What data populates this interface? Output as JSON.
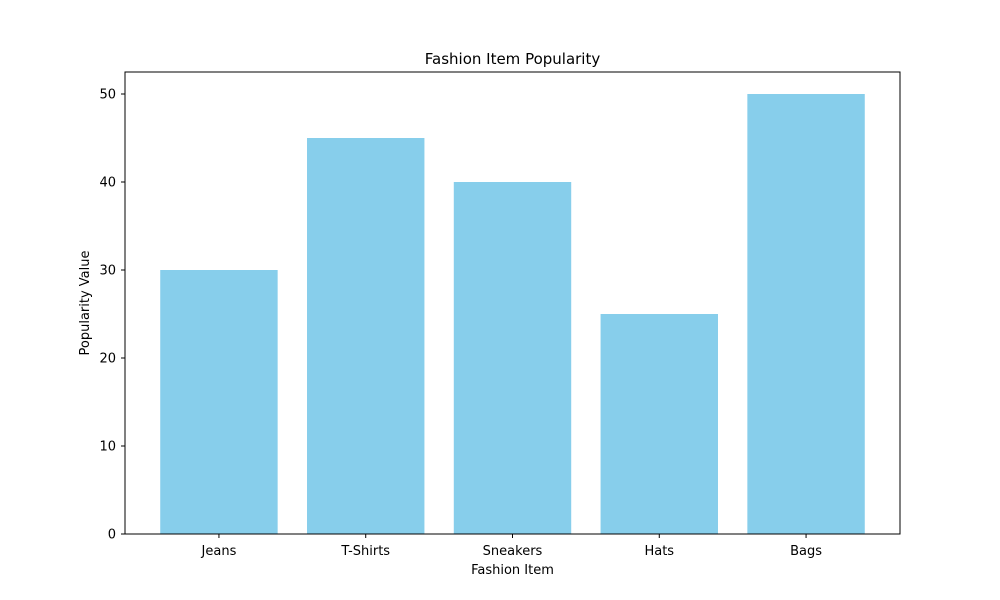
{
  "chart_data": {
    "type": "bar",
    "title": "Fashion Item Popularity",
    "xlabel": "Fashion Item",
    "ylabel": "Popularity Value",
    "categories": [
      "Jeans",
      "T-Shirts",
      "Sneakers",
      "Hats",
      "Bags"
    ],
    "values": [
      30,
      45,
      40,
      25,
      50
    ],
    "ylim": [
      0,
      52.5
    ],
    "yticks": [
      0,
      10,
      20,
      30,
      40,
      50
    ],
    "grid": false,
    "colors": {
      "bar": "#87ceeb",
      "axis": "#000000",
      "background": "#ffffff"
    }
  }
}
